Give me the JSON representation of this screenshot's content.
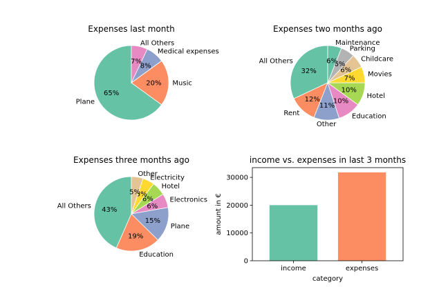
{
  "chart_data": [
    {
      "type": "pie",
      "title": "Expenses last month",
      "slices": [
        {
          "label": "Plane",
          "value": 65,
          "pct_label": "65%",
          "color": "#66c2a5"
        },
        {
          "label": "Music",
          "value": 20,
          "pct_label": "20%",
          "color": "#fc8d62"
        },
        {
          "label": "Medical expenses",
          "value": 8,
          "pct_label": "8%",
          "color": "#8da0cb"
        },
        {
          "label": "All Others",
          "value": 7,
          "pct_label": "7%",
          "color": "#e78ac3"
        }
      ]
    },
    {
      "type": "pie",
      "title": "Expenses two months ago",
      "slices": [
        {
          "label": "All Others",
          "value": 32,
          "pct_label": "32%",
          "color": "#66c2a5"
        },
        {
          "label": "Rent",
          "value": 12,
          "pct_label": "12%",
          "color": "#fc8d62"
        },
        {
          "label": "Other",
          "value": 11,
          "pct_label": "11%",
          "color": "#8da0cb"
        },
        {
          "label": "Education",
          "value": 10,
          "pct_label": "10%",
          "color": "#e78ac3"
        },
        {
          "label": "Hotel",
          "value": 10,
          "pct_label": "10%",
          "color": "#a6d854"
        },
        {
          "label": "Movies",
          "value": 7,
          "pct_label": "7%",
          "color": "#ffd92f"
        },
        {
          "label": "Childcare",
          "value": 6,
          "pct_label": "6%",
          "color": "#e5c494"
        },
        {
          "label": "Parking",
          "value": 6,
          "pct_label": "6%",
          "color": "#b3b3b3"
        },
        {
          "label": "Maintenance",
          "value": 6,
          "pct_label": "6%",
          "color": "#66c2a5"
        }
      ]
    },
    {
      "type": "pie",
      "title": "Expenses three months ago",
      "slices": [
        {
          "label": "All Others",
          "value": 43,
          "pct_label": "43%",
          "color": "#66c2a5"
        },
        {
          "label": "Education",
          "value": 19,
          "pct_label": "19%",
          "color": "#fc8d62"
        },
        {
          "label": "Plane",
          "value": 15,
          "pct_label": "15%",
          "color": "#8da0cb"
        },
        {
          "label": "Electronics",
          "value": 6,
          "pct_label": "6%",
          "color": "#e78ac3"
        },
        {
          "label": "Hotel",
          "value": 6,
          "pct_label": "6%",
          "color": "#a6d854"
        },
        {
          "label": "Electricity",
          "value": 5,
          "pct_label": "5%",
          "color": "#ffd92f"
        },
        {
          "label": "Other",
          "value": 5,
          "pct_label": "5%",
          "color": "#e5c494"
        }
      ]
    },
    {
      "type": "bar",
      "title": "income vs. expenses in last 3 months",
      "xlabel": "category",
      "ylabel": "amount in €",
      "categories": [
        "income",
        "expenses"
      ],
      "values": [
        20000,
        31800
      ],
      "colors": [
        "#66c2a5",
        "#fc8d62"
      ],
      "ylim": [
        0,
        33500
      ],
      "yticks": [
        0,
        10000,
        20000,
        30000
      ]
    }
  ]
}
